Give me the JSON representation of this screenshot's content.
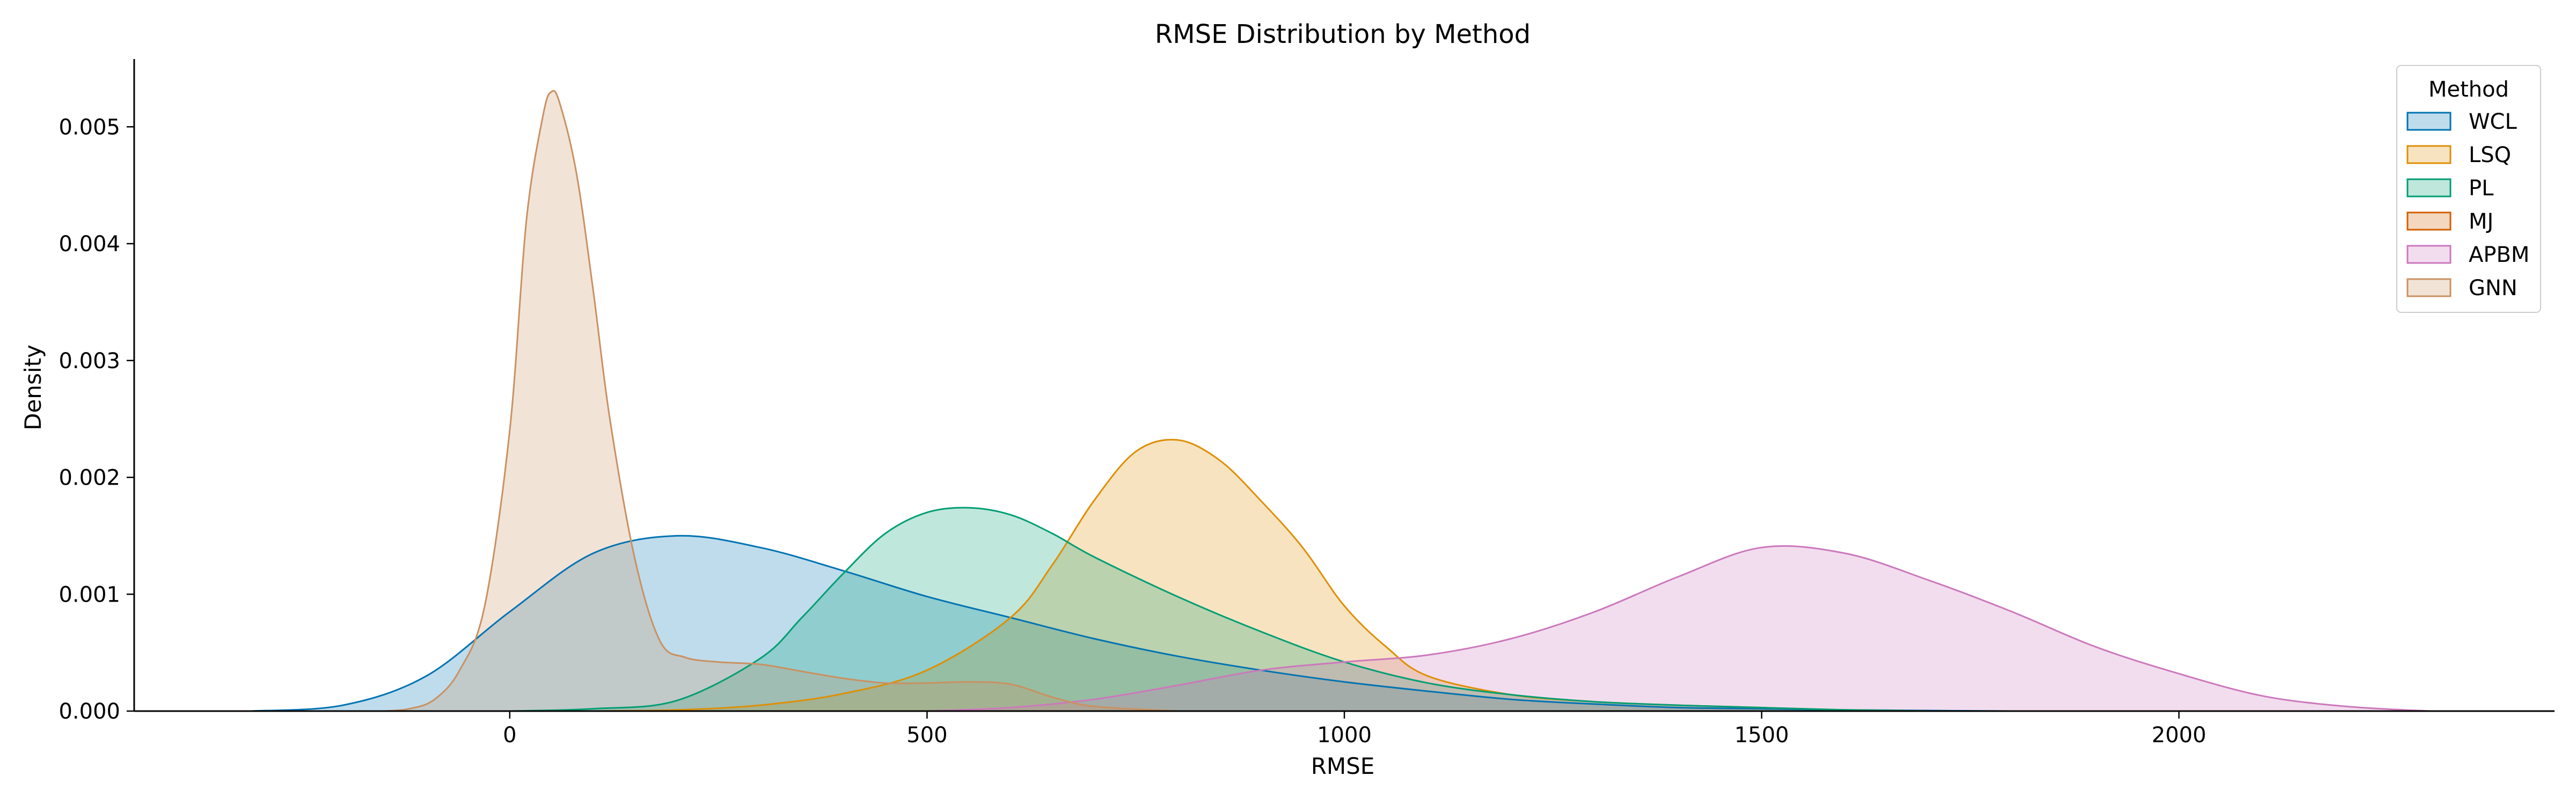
{
  "chart_data": {
    "type": "area",
    "title": "RMSE Distribution by Method",
    "xlabel": "RMSE",
    "ylabel": "Density",
    "xlim": [
      -450,
      2450
    ],
    "ylim": [
      0,
      0.00558
    ],
    "xticks": [
      0,
      500,
      1000,
      1500,
      2000
    ],
    "yticks": [
      0.0,
      0.001,
      0.002,
      0.003,
      0.004,
      0.005
    ],
    "ytick_labels": [
      "0.000",
      "0.001",
      "0.002",
      "0.003",
      "0.004",
      "0.005"
    ],
    "grid": false,
    "legend": {
      "title": "Method",
      "placement": "top-right"
    },
    "series": [
      {
        "name": "WCL",
        "color": "#0173b2",
        "x": [
          -310,
          -200,
          -100,
          0,
          100,
          200,
          300,
          400,
          500,
          600,
          700,
          800,
          900,
          1000,
          1100,
          1200,
          1300,
          1400,
          1500,
          1600,
          1800,
          2000
        ],
        "y": [
          0.0,
          5e-05,
          0.0003,
          0.00085,
          0.00135,
          0.0015,
          0.0014,
          0.0012,
          0.00098,
          0.0008,
          0.00062,
          0.00047,
          0.00035,
          0.00025,
          0.00017,
          0.0001,
          6e-05,
          3e-05,
          2e-05,
          1e-05,
          0.0,
          0.0
        ]
      },
      {
        "name": "LSQ",
        "color": "#de8f05",
        "x": [
          100,
          200,
          300,
          400,
          500,
          600,
          650,
          700,
          750,
          800,
          850,
          900,
          950,
          1000,
          1050,
          1100,
          1200,
          1300,
          1400,
          1500,
          1600,
          1700
        ],
        "y": [
          0.0,
          1e-05,
          5e-05,
          0.00015,
          0.00035,
          0.0008,
          0.00125,
          0.0018,
          0.00222,
          0.00232,
          0.00215,
          0.0018,
          0.0014,
          0.0009,
          0.00055,
          0.0003,
          0.00014,
          8e-05,
          5e-05,
          3e-05,
          1e-05,
          0.0
        ]
      },
      {
        "name": "PL",
        "color": "#029e73",
        "x": [
          0,
          100,
          200,
          300,
          350,
          400,
          450,
          500,
          550,
          600,
          650,
          700,
          800,
          900,
          1000,
          1100,
          1200,
          1300,
          1400,
          1500,
          1600,
          1700
        ],
        "y": [
          0.0,
          2e-05,
          9e-05,
          0.00045,
          0.0008,
          0.00118,
          0.00152,
          0.0017,
          0.00174,
          0.00168,
          0.00152,
          0.00132,
          0.00098,
          0.00068,
          0.00042,
          0.00024,
          0.00014,
          8e-05,
          5e-05,
          3e-05,
          1e-05,
          0.0
        ]
      },
      {
        "name": "MJ",
        "color": "#d55e00",
        "x": [
          0,
          100,
          200,
          300,
          400,
          500,
          600,
          700,
          800,
          900,
          1000
        ],
        "y": [
          0.0,
          0.0,
          0.0,
          0.0,
          0.0,
          0.0,
          0.0,
          0.0,
          0.0,
          0.0,
          0.0
        ]
      },
      {
        "name": "APBM",
        "color": "#cc78bc",
        "x": [
          500,
          600,
          700,
          800,
          900,
          1000,
          1100,
          1200,
          1300,
          1400,
          1500,
          1600,
          1700,
          1800,
          1900,
          2000,
          2100,
          2200,
          2300
        ],
        "y": [
          0.0,
          3e-05,
          0.0001,
          0.00022,
          0.00035,
          0.00042,
          0.00048,
          0.00062,
          0.00085,
          0.00115,
          0.0014,
          0.00135,
          0.00112,
          0.00085,
          0.00055,
          0.00032,
          0.00013,
          4e-05,
          0.0
        ]
      },
      {
        "name": "GNN",
        "color": "#ca9161",
        "x": [
          -150,
          -120,
          -90,
          -60,
          -30,
          0,
          20,
          40,
          50,
          60,
          80,
          100,
          120,
          150,
          180,
          210,
          250,
          300,
          350,
          400,
          450,
          500,
          550,
          600,
          650,
          700,
          800
        ],
        "y": [
          0.0,
          2e-05,
          0.0001,
          0.00035,
          0.0009,
          0.0024,
          0.0042,
          0.0051,
          0.0053,
          0.0052,
          0.0046,
          0.0036,
          0.0025,
          0.0013,
          0.0006,
          0.00046,
          0.00042,
          0.0004,
          0.00034,
          0.00028,
          0.00024,
          0.00024,
          0.00025,
          0.00023,
          0.00012,
          4e-05,
          0.0
        ]
      }
    ]
  }
}
